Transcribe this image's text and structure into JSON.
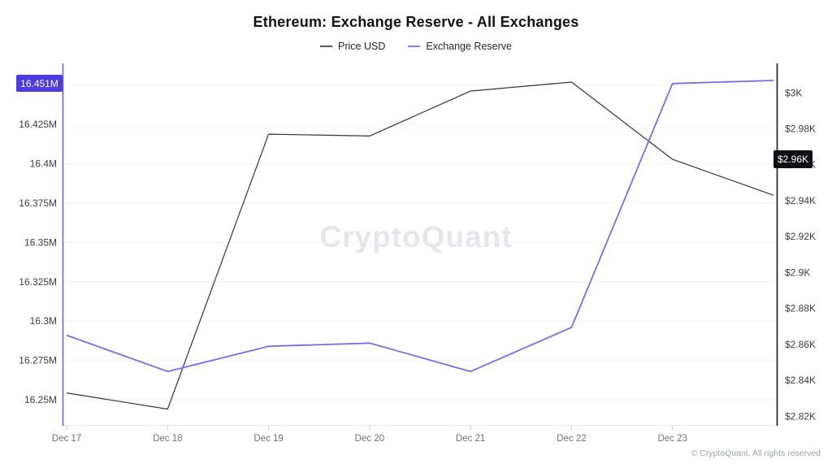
{
  "page": {
    "title": "Ethereum: Exchange Reserve - All Exchanges",
    "watermark": "CryptoQuant",
    "footer": "© CryptoQuant. All rights reserved"
  },
  "legend": {
    "items": [
      {
        "label": "Price USD",
        "color": "#55565e"
      },
      {
        "label": "Exchange Reserve",
        "color": "#8b7de9"
      }
    ]
  },
  "chart_data": {
    "type": "line",
    "title": "Ethereum: Exchange Reserve - All Exchanges",
    "x_categories": [
      "Dec 17",
      "Dec 18",
      "Dec 19",
      "Dec 20",
      "Dec 21",
      "Dec 22",
      "Dec 23",
      ""
    ],
    "series": [
      {
        "name": "Price USD",
        "axis": "right",
        "color": "#33333b",
        "width": 1.2,
        "values": [
          2833,
          2824,
          2977,
          2976,
          3001,
          3006,
          2963,
          2943
        ]
      },
      {
        "name": "Exchange Reserve",
        "axis": "left",
        "color": "#7b6ce6",
        "width": 1.8,
        "values": [
          16.291,
          16.268,
          16.284,
          16.286,
          16.268,
          16.296,
          16.451,
          16.453
        ]
      }
    ],
    "left_axis": {
      "title": "Exchange Reserve",
      "unit": "M ETH",
      "min": 16.234,
      "max": 16.4628,
      "axis_color": "#6f61e2",
      "ticks": [
        {
          "value": 16.25,
          "label": "16.25M"
        },
        {
          "value": 16.275,
          "label": "16.275M"
        },
        {
          "value": 16.3,
          "label": "16.3M"
        },
        {
          "value": 16.325,
          "label": "16.325M"
        },
        {
          "value": 16.35,
          "label": "16.35M"
        },
        {
          "value": 16.375,
          "label": "16.375M"
        },
        {
          "value": 16.4,
          "label": "16.4M"
        },
        {
          "value": 16.425,
          "label": "16.425M"
        }
      ]
    },
    "right_axis": {
      "title": "Price USD",
      "unit": "USD",
      "min": 2815.2,
      "max": 3015.5,
      "axis_color": "#17171c",
      "ticks": [
        {
          "value": 3000,
          "label": "$3K"
        },
        {
          "value": 2980,
          "label": "$2.98K"
        },
        {
          "value": 2960,
          "label": "$2.96K"
        },
        {
          "value": 2940,
          "label": "$2.94K"
        },
        {
          "value": 2920,
          "label": "$2.92K"
        },
        {
          "value": 2900,
          "label": "$2.9K"
        },
        {
          "value": 2880,
          "label": "$2.88K"
        },
        {
          "value": 2860,
          "label": "$2.86K"
        },
        {
          "value": 2840,
          "label": "$2.84K"
        },
        {
          "value": 2820,
          "label": "$2.82K"
        }
      ]
    },
    "gridline_values_left": [
      16.25,
      16.275,
      16.3,
      16.325,
      16.35,
      16.375,
      16.4,
      16.425,
      16.45
    ],
    "badges": {
      "left": {
        "label": "16.451M",
        "value": 16.451
      },
      "right": {
        "label": "$2.96K",
        "value": 2963
      }
    },
    "legend_position": "top",
    "grid": true
  }
}
